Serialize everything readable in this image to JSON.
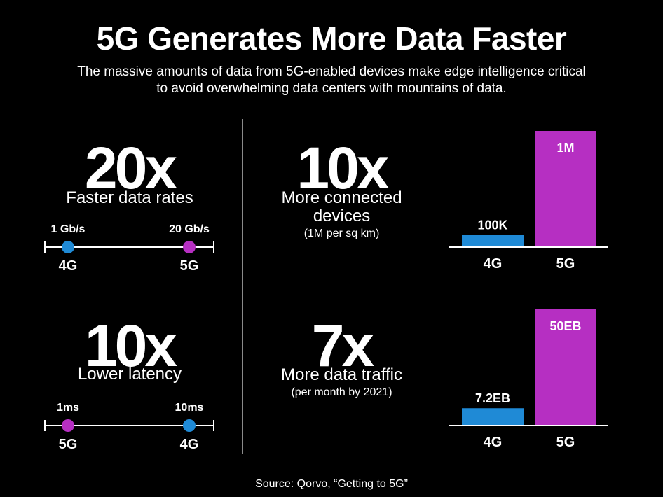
{
  "header": {
    "title": "5G Generates More Data Faster",
    "subtitle": "The massive amounts of data from 5G-enabled devices make edge intelligence critical to avoid overwhelming data centers with mountains of data."
  },
  "stats": {
    "rates": {
      "value": "20x",
      "label": "Faster data rates",
      "left_value": "1 Gb/s",
      "left_gen": "4G",
      "right_value": "20 Gb/s",
      "right_gen": "5G"
    },
    "latency": {
      "value": "10x",
      "label": "Lower latency",
      "left_value": "1ms",
      "left_gen": "5G",
      "right_value": "10ms",
      "right_gen": "4G"
    },
    "devices": {
      "value": "10x",
      "label_line1": "More connected",
      "label_line2": "devices",
      "note": "(1M per sq km)"
    },
    "traffic": {
      "value": "7x",
      "label": "More data traffic",
      "note": "(per month by 2021)"
    }
  },
  "colors": {
    "g4": "#1f8ad6",
    "g5": "#b62fc2",
    "background": "#000000",
    "text": "#ffffff"
  },
  "chart_data": [
    {
      "type": "bar",
      "categories": [
        "4G",
        "5G"
      ],
      "values": [
        100000,
        1000000
      ],
      "data_labels": [
        "100K",
        "1M"
      ],
      "ylim": [
        0,
        1000000
      ]
    },
    {
      "type": "bar",
      "categories": [
        "4G",
        "5G"
      ],
      "values": [
        7.2,
        50
      ],
      "data_labels": [
        "7.2EB",
        "50EB"
      ],
      "ylim": [
        0,
        50
      ]
    }
  ],
  "footer": {
    "source": "Source: Qorvo, “Getting to 5G”"
  }
}
